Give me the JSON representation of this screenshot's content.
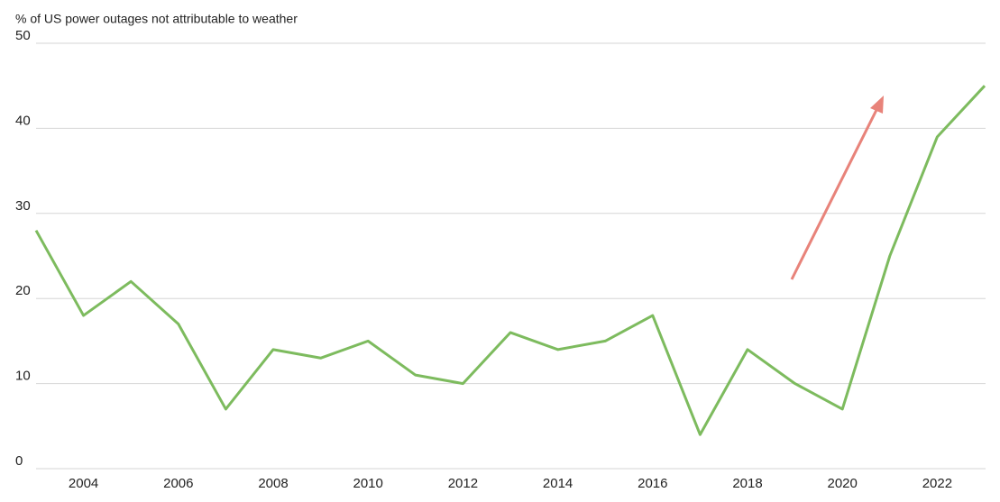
{
  "chart_data": {
    "type": "line",
    "title": "% of US power outages not attributable to weather",
    "x": [
      2003,
      2004,
      2005,
      2006,
      2007,
      2008,
      2009,
      2010,
      2011,
      2012,
      2013,
      2014,
      2015,
      2016,
      2017,
      2018,
      2019,
      2020,
      2021,
      2022,
      2023
    ],
    "series": [
      {
        "color": "#7dbb5e",
        "values": [
          28,
          18,
          22,
          17,
          7,
          14,
          13,
          15,
          11,
          10,
          16,
          14,
          15,
          18,
          4,
          14,
          10,
          7,
          25,
          39,
          45
        ]
      }
    ],
    "xlim": [
      2003,
      2023
    ],
    "xticks": [
      2004,
      2006,
      2008,
      2010,
      2012,
      2014,
      2016,
      2018,
      2020,
      2022
    ],
    "ylim": [
      0,
      50
    ],
    "yticks": [
      0,
      10,
      20,
      30,
      40,
      50
    ],
    "grid": true
  }
}
